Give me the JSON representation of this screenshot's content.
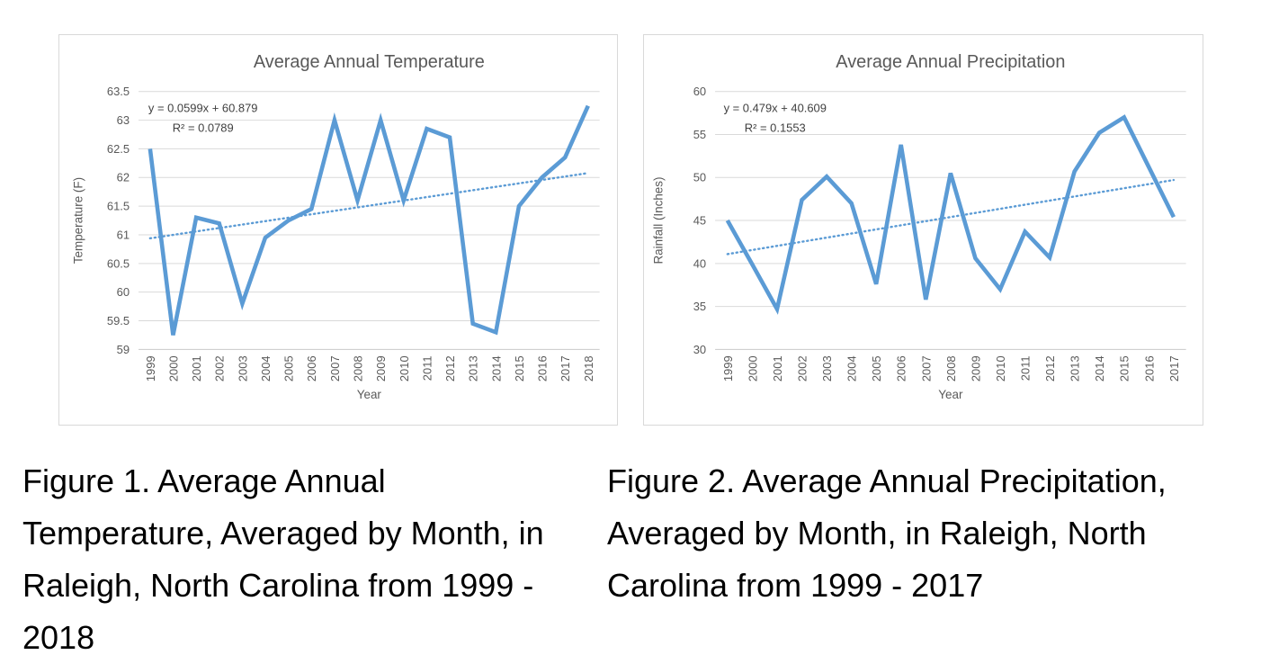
{
  "colors": {
    "series_line": "#5b9bd5",
    "trendline": "#5b9bd5",
    "gridline": "#d9d9d9",
    "axis_line": "#c9c9c9",
    "chart_text": "#595959",
    "equation_text": "#404040",
    "panel_border": "#d9d9d9",
    "caption_text": "#000000"
  },
  "captions": {
    "figure1": "Figure 1. Average Annual\nTemperature, Averaged by Month, in\nRaleigh, North Carolina from 1999 -\n2018",
    "figure2": "Figure 2. Average Annual Precipitation,\nAveraged by Month, in Raleigh, North\nCarolina from 1999 - 2017"
  },
  "chart_data": [
    {
      "type": "line",
      "title": "Average Annual Temperature",
      "xlabel": "Year",
      "ylabel": "Temperature (F)",
      "ylim": [
        59,
        63.5
      ],
      "ytick_step": 0.5,
      "grid": true,
      "legend": "none",
      "categories": [
        "1999",
        "2000",
        "2001",
        "2002",
        "2003",
        "2004",
        "2005",
        "2006",
        "2007",
        "2008",
        "2009",
        "2010",
        "2011",
        "2012",
        "2013",
        "2014",
        "2015",
        "2016",
        "2017",
        "2018"
      ],
      "series": [
        {
          "name": "Average Annual Temperature",
          "values": [
            62.5,
            59.25,
            61.3,
            61.2,
            59.8,
            60.95,
            61.25,
            61.45,
            63.0,
            61.6,
            63.0,
            61.6,
            62.85,
            62.7,
            59.45,
            59.3,
            61.5,
            62.0,
            62.35,
            63.25
          ]
        }
      ],
      "trendline": {
        "style": "dotted",
        "slope": 0.0599,
        "intercept": 60.879,
        "equation": "y = 0.0599x + 60.879",
        "r_squared": "R² = 0.0789"
      }
    },
    {
      "type": "line",
      "title": "Average Annual Precipitation",
      "xlabel": "Year",
      "ylabel": "Rainfall (Inches)",
      "ylim": [
        30,
        60
      ],
      "ytick_step": 5,
      "grid": true,
      "legend": "none",
      "categories": [
        "1999",
        "2000",
        "2001",
        "2002",
        "2003",
        "2004",
        "2005",
        "2006",
        "2007",
        "2008",
        "2009",
        "2010",
        "2011",
        "2012",
        "2013",
        "2014",
        "2015",
        "2016",
        "2017"
      ],
      "series": [
        {
          "name": "Average Annual Precipitation",
          "values": [
            45.0,
            39.9,
            34.7,
            47.4,
            50.1,
            47.0,
            37.6,
            53.8,
            35.8,
            50.5,
            40.6,
            37.0,
            43.7,
            40.7,
            50.7,
            55.2,
            57.0,
            51.2,
            45.4
          ]
        }
      ],
      "trendline": {
        "style": "dotted",
        "slope": 0.479,
        "intercept": 40.609,
        "equation": "y = 0.479x + 40.609",
        "r_squared": "R² = 0.1553"
      }
    }
  ]
}
